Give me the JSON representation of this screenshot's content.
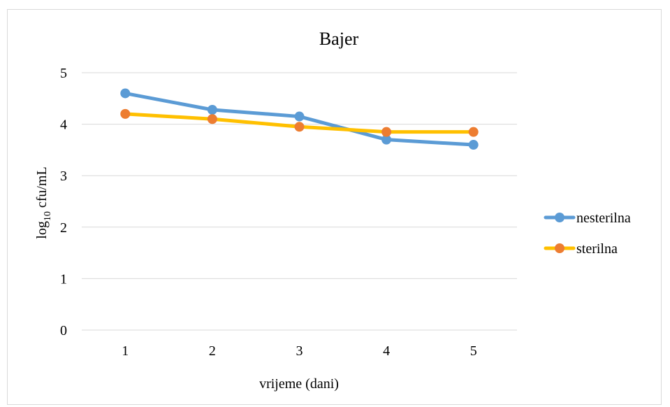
{
  "chart_data": {
    "type": "line",
    "title": "Bajer",
    "xlabel": "vrijeme (dani)",
    "ylabel_main": "log",
    "ylabel_sub": "10",
    "ylabel_rest": " cfu/mL",
    "categories": [
      "1",
      "2",
      "3",
      "4",
      "5"
    ],
    "ylim": [
      0,
      5
    ],
    "yticks": [
      0,
      1,
      2,
      3,
      4,
      5
    ],
    "grid": true,
    "legend_position": "right",
    "series": [
      {
        "name": "nesterilna",
        "color": "#5B9BD5",
        "values": [
          4.6,
          4.28,
          4.15,
          3.7,
          3.6
        ]
      },
      {
        "name": "sterilna",
        "color": "#FFC000",
        "marker_color": "#ED7D31",
        "values": [
          4.2,
          4.1,
          3.95,
          3.85,
          3.85
        ]
      }
    ]
  }
}
